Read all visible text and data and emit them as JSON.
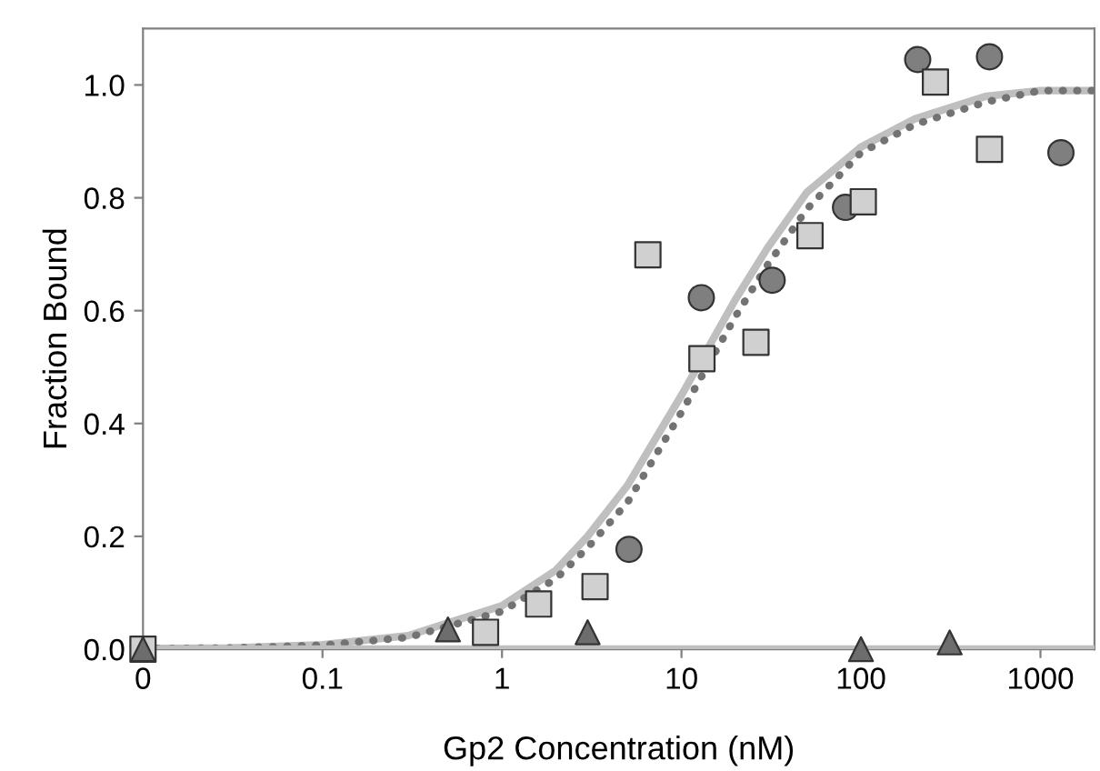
{
  "chart_data": {
    "type": "scatter",
    "xlabel": "Gp2 Concentration (nM)",
    "ylabel": "Fraction Bound",
    "log": "x",
    "xlim": [
      0.01,
      2000
    ],
    "xticks": [
      {
        "value": 0.01,
        "label": "0"
      },
      0.1,
      1,
      10,
      100,
      1000
    ],
    "ylim": [
      0,
      1.1
    ],
    "yticks": [
      {
        "value": 0,
        "label": "0.0"
      },
      {
        "value": 0.2,
        "label": "0.2"
      },
      {
        "value": 0.4,
        "label": "0.4"
      },
      {
        "value": 0.6,
        "label": "0.6"
      },
      {
        "value": 0.8,
        "label": "0.8"
      },
      {
        "value": 1,
        "label": "1.0"
      }
    ],
    "grid": false,
    "series": [
      {
        "type": "line",
        "color": "#bfbfbf",
        "line_style": "solid",
        "marker": "none",
        "x": [
          0.01,
          0.03,
          0.1,
          0.3,
          1,
          2,
          3,
          5,
          10,
          20,
          30,
          50,
          100,
          200,
          500,
          1000,
          2000
        ],
        "values": [
          0.001,
          0.002,
          0.008,
          0.024,
          0.077,
          0.14,
          0.2,
          0.29,
          0.45,
          0.62,
          0.71,
          0.81,
          0.89,
          0.94,
          0.98,
          0.99,
          0.99
        ]
      },
      {
        "type": "line",
        "color": "#737373",
        "line_style": "dotted",
        "marker": "none",
        "x": [
          0.01,
          0.03,
          0.1,
          0.3,
          1,
          2,
          3,
          5,
          10,
          20,
          30,
          50,
          100,
          200,
          500,
          1000,
          2000
        ],
        "values": [
          0.001,
          0.002,
          0.007,
          0.021,
          0.067,
          0.125,
          0.18,
          0.26,
          0.42,
          0.59,
          0.68,
          0.78,
          0.88,
          0.93,
          0.97,
          0.99,
          0.99
        ]
      },
      {
        "type": "line",
        "color": "#bfbfbf",
        "line_style": "solid",
        "marker": "none",
        "x": [
          0.01,
          2000
        ],
        "values": [
          0,
          0
        ]
      },
      {
        "color": "#7f7f7f",
        "marker": "circle",
        "x": [
          5.1,
          12.9,
          32,
          82,
          207,
          520,
          1300
        ],
        "values": [
          0.177,
          0.623,
          0.654,
          0.783,
          1.045,
          1.05,
          0.88
        ]
      },
      {
        "color": "#d0d0d0",
        "marker": "square",
        "x": [
          0.01,
          0.81,
          1.6,
          3.3,
          6.5,
          13,
          26,
          52,
          103,
          260,
          520
        ],
        "values": [
          0,
          0.03,
          0.08,
          0.111,
          0.699,
          0.515,
          0.544,
          0.733,
          0.793,
          1.005,
          0.886
        ]
      },
      {
        "color": "#6d6d6d",
        "marker": "triangle",
        "x": [
          0.01,
          0.5,
          3,
          100,
          312
        ],
        "values": [
          0,
          0.035,
          0.03,
          0,
          0.012
        ]
      }
    ]
  }
}
